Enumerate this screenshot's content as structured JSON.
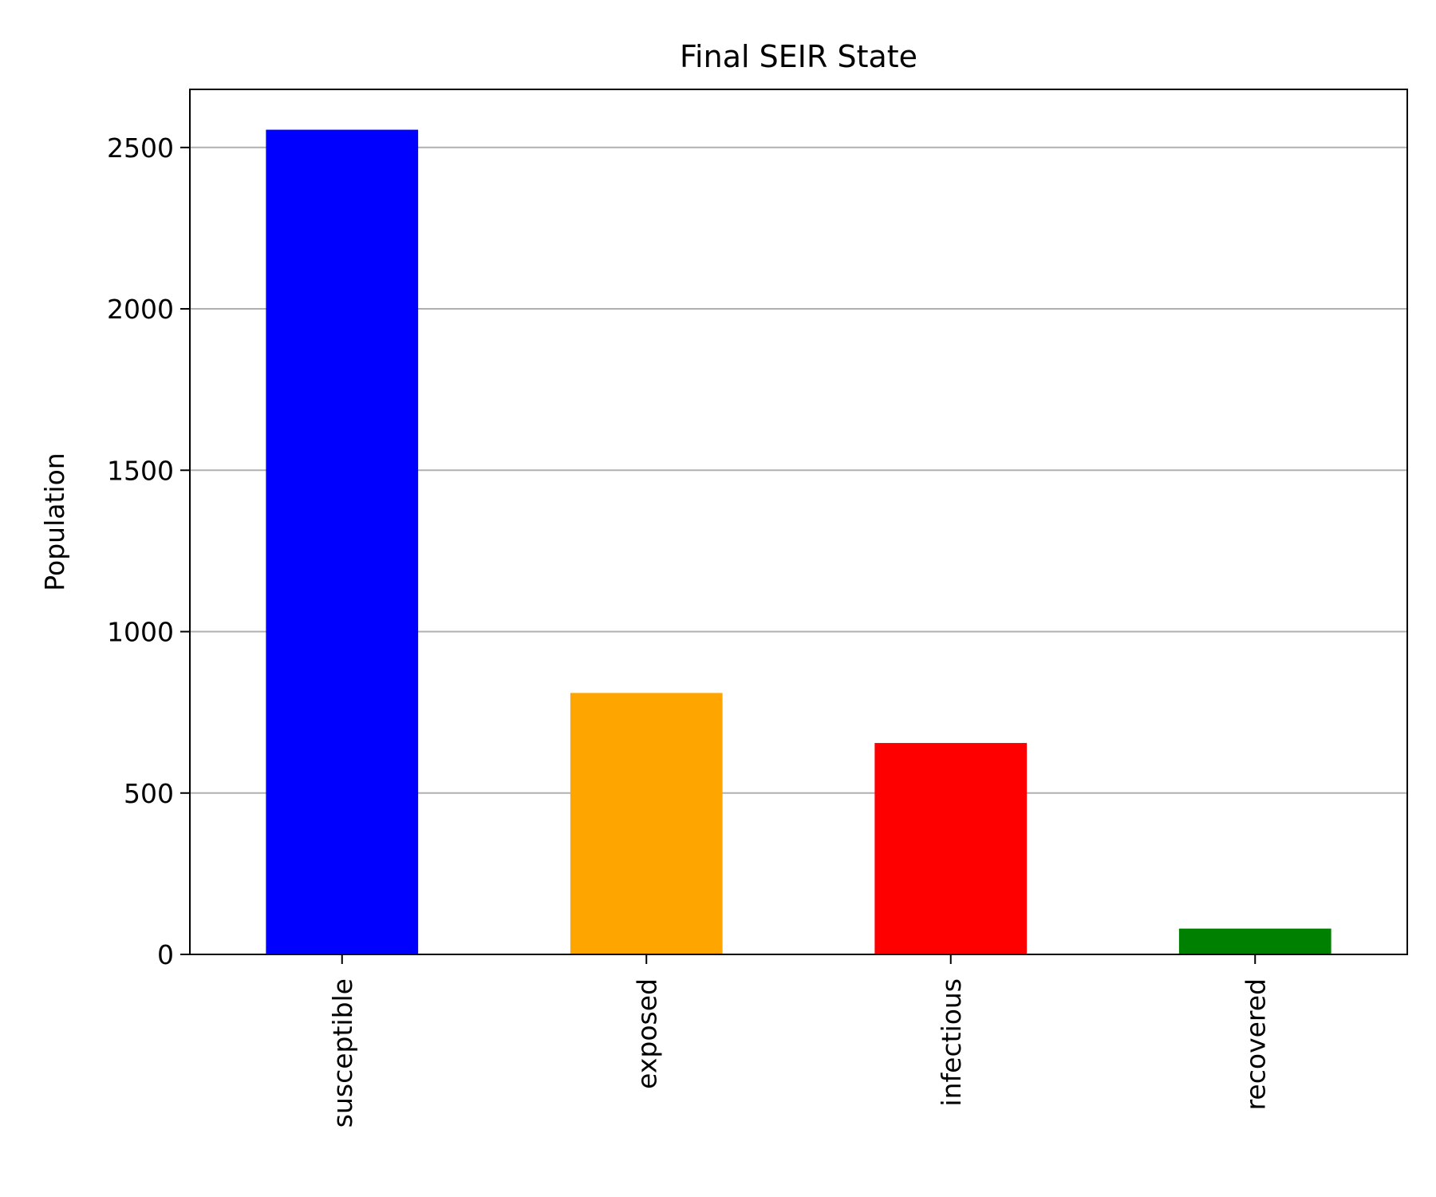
{
  "chart_data": {
    "type": "bar",
    "title": "Final SEIR State",
    "xlabel": "",
    "ylabel": "Population",
    "categories": [
      "susceptible",
      "exposed",
      "infectious",
      "recovered"
    ],
    "values": [
      2555,
      810,
      655,
      80
    ],
    "colors": [
      "#0000ff",
      "#ffa500",
      "#ff0000",
      "#008000"
    ],
    "ylim": [
      0,
      2680
    ],
    "yticks": [
      0,
      500,
      1000,
      1500,
      2000,
      2500
    ],
    "grid": "y",
    "grid_color": "#b0b0b0",
    "legend": "none"
  }
}
